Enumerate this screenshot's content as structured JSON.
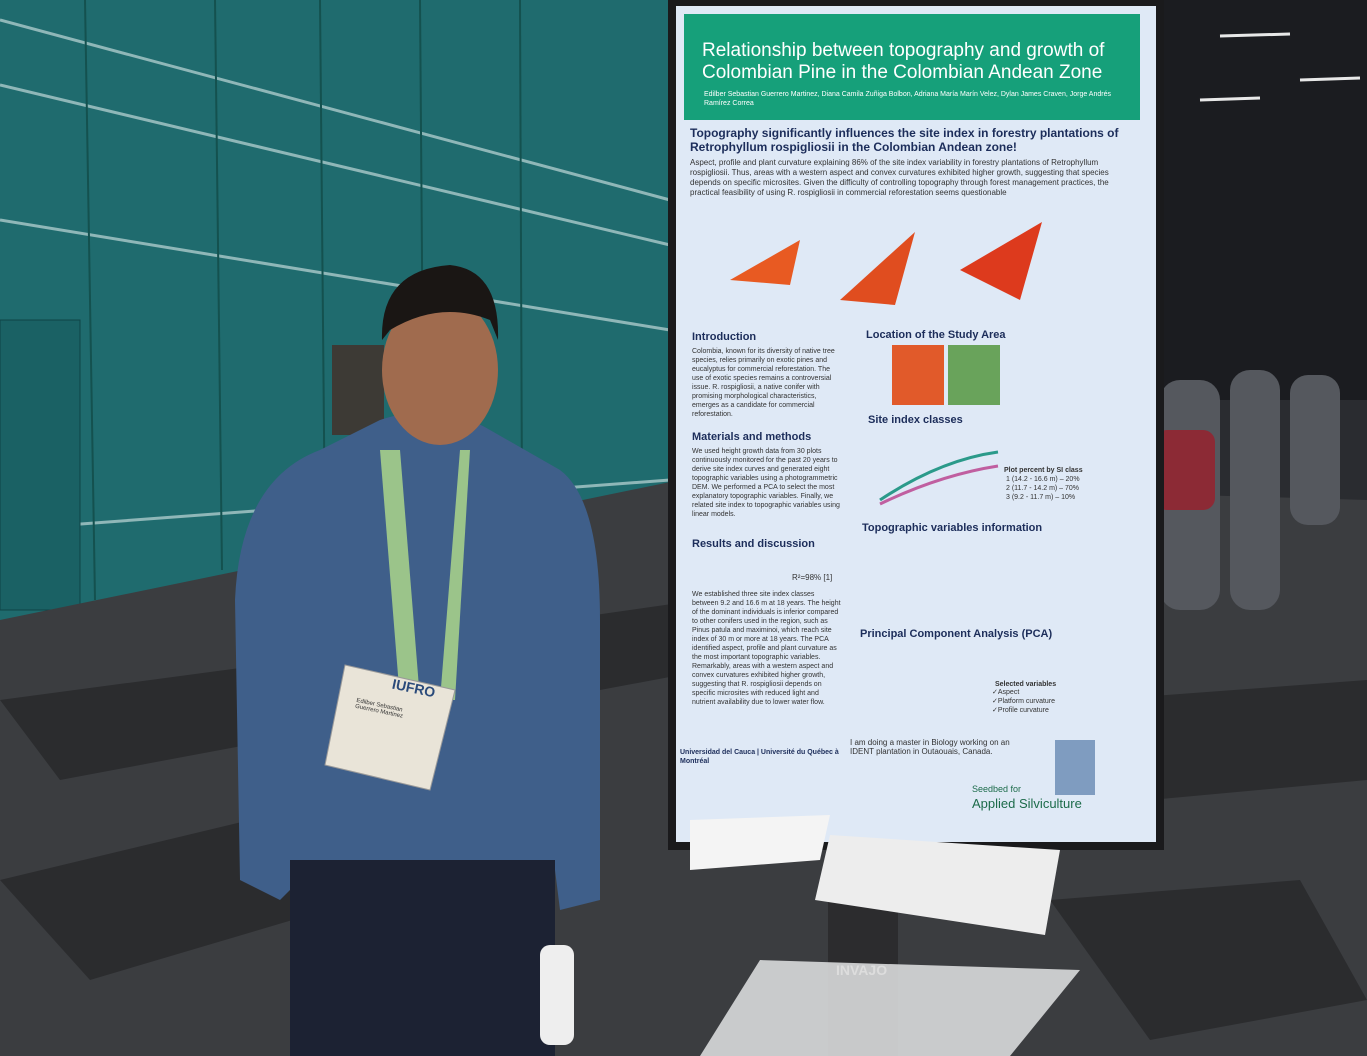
{
  "poster": {
    "title": "Relationship between topography and growth of Colombian Pine in the Colombian Andean Zone",
    "authors": "Edilber Sebastian Guerrero Martinez, Diana Camila Zuñiga Bolbon, Adriana María Marín Velez, Dylan James Craven, Jorge Andrés Ramírez Correa",
    "headline": "Topography significantly influences the site index in forestry plantations of Retrophyllum rospigliosii in the Colombian Andean zone!",
    "summary": "Aspect, profile and plant curvature explaining 86% of the site index variability in forestry plantations of Retrophyllum rospigliosii. Thus, areas with a western aspect and convex curvatures exhibited higher growth, suggesting that species depends on specific microsites. Given the difficulty of controlling topography through forest management practices, the practical feasibility of using R. rospigliosii in commercial reforestation seems questionable",
    "intro_heading": "Introduction",
    "intro": "Colombia, known for its diversity of native tree species, relies primarily on exotic pines and eucalyptus for commercial reforestation. The use of exotic species remains a controversial issue. R. rospigliosii, a native conifer with promising morphological characteristics, emerges as a candidate for commercial reforestation.",
    "methods_heading": "Materials and methods",
    "methods": "We used height growth data from 30 plots continuously monitored for the past 20 years to derive site index curves and generated eight topographic variables using a photogrammetric DEM. We performed a PCA to select the most explanatory topographic variables. Finally, we related site index to topographic variables using linear models.",
    "results_heading": "Results and discussion",
    "equation_fit": "R²=98% [1]",
    "results": "We established three site index classes between 9.2 and 16.6 m at 18 years. The height of the dominant individuals is inferior compared to other conifers used in the region, such as Pinus patula and maximinoi, which reach site index of 30 m or more at 18 years. The PCA identified aspect, profile and plant curvature as the most important topographic variables. Remarkably, areas with a western aspect and convex curvatures exhibited higher growth, suggesting that R. rospigliosii depends on specific microsites with reduced light and nutrient availability due to lower water flow.",
    "location_heading": "Location of the Study Area",
    "site_heading": "Site index classes",
    "site_legend_title": "Plot percent by SI class",
    "site_legend": [
      "1 (14.2 - 16.6 m) – 20%",
      "2 (11.7 - 14.2 m) – 70%",
      "3 (9.2 - 11.7 m) – 10%"
    ],
    "topo_heading": "Topographic variables information",
    "pca_heading": "Principal Component Analysis (PCA)",
    "pca_legend_title": "Selected variables",
    "pca_legend": [
      "✓Aspect",
      "✓Platform curvature",
      "✓Profile curvature"
    ],
    "footer_note": "I am doing a master in Biology working on an IDENT plantation in Outaouais, Canada.",
    "institutions": "Universidad del Cauca | Université du Québec à Montréal",
    "logo_top": "Seedbed for",
    "logo_bottom": "Applied Silviculture"
  },
  "badge": {
    "org": "IUFRO",
    "name": "Edilber Sebastian Guerrero Martinez"
  },
  "stand": {
    "brand": "INVAJO"
  }
}
